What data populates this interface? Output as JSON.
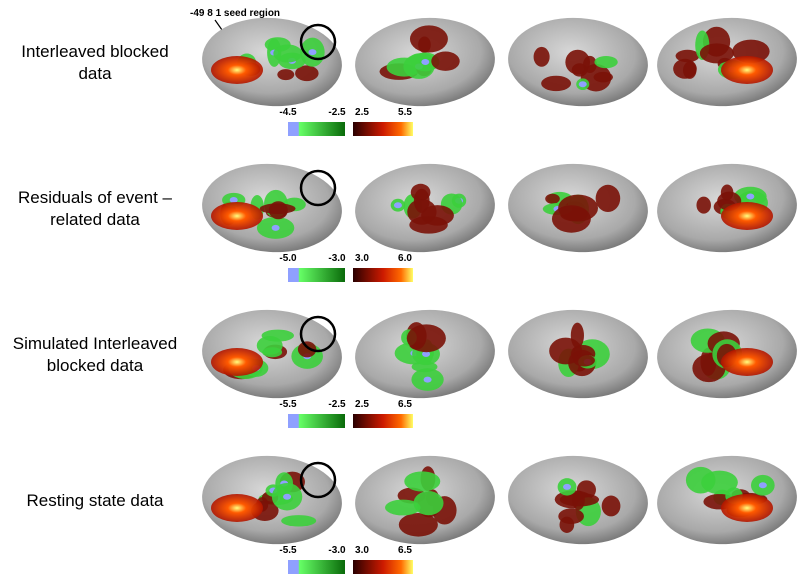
{
  "annotation": "-49 8 1 seed region",
  "rows": [
    {
      "label": [
        "Interleaved blocked",
        "data"
      ],
      "scale": [
        "-4.5",
        "-2.5",
        "2.5",
        "5.5"
      ]
    },
    {
      "label": [
        "Residuals of event –",
        "related data"
      ],
      "scale": [
        "-5.0",
        "-3.0",
        "3.0",
        "6.0"
      ]
    },
    {
      "label": [
        "Simulated Interleaved",
        "blocked data"
      ],
      "scale": [
        "-5.5",
        "-2.5",
        "2.5",
        "6.5"
      ]
    },
    {
      "label": [
        "Resting state data"
      ],
      "scale": [
        "-5.5",
        "-3.0",
        "3.0",
        "6.5"
      ]
    }
  ]
}
